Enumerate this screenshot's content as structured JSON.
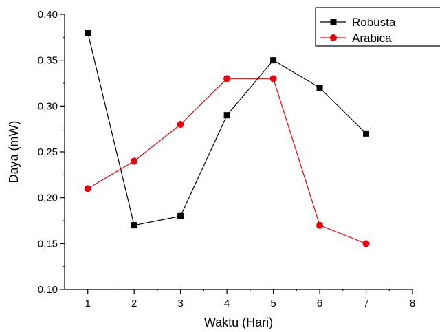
{
  "chart_data": {
    "type": "line",
    "xlabel": "Waktu (Hari)",
    "ylabel": "Daya (mW)",
    "xlim": [
      0.5,
      8
    ],
    "ylim": [
      0.1,
      0.4
    ],
    "x_ticks": [
      "1",
      "2",
      "3",
      "4",
      "5",
      "6",
      "7",
      "8"
    ],
    "y_ticks": [
      "0,10",
      "0,15",
      "0,20",
      "0,25",
      "0,30",
      "0,35",
      "0,40"
    ],
    "x": [
      1,
      2,
      3,
      4,
      5,
      6,
      7
    ],
    "series": [
      {
        "name": "Robusta",
        "color": "#000000",
        "marker": "square",
        "values": [
          0.38,
          0.17,
          0.18,
          0.29,
          0.35,
          0.32,
          0.27
        ]
      },
      {
        "name": "Arabica",
        "color": "#e8000b",
        "marker": "circle",
        "values": [
          0.21,
          0.24,
          0.28,
          0.33,
          0.33,
          0.17,
          0.15
        ]
      }
    ],
    "grid": false,
    "legend": "top-right"
  }
}
